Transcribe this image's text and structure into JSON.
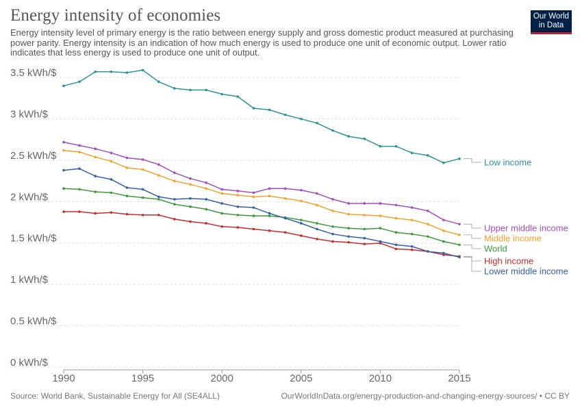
{
  "header": {
    "title": "Energy intensity of economies",
    "subtitle": "Energy intensity level of primary energy is the ratio between energy supply and gross domestic product measured at purchasing power parity. Energy intensity is an indication of how much energy is used to produce one unit of economic output. Lower ratio indicates that less energy is used to produce one unit of output."
  },
  "logo": {
    "line1": "Our World",
    "line2": "in Data",
    "background": "#002147",
    "accent": "#be1e2d"
  },
  "footer": {
    "source": "Source: World Bank, Sustainable Energy for All (SE4ALL)",
    "url": "OurWorldInData.org/energy-production-and-changing-energy-sources/ • CC BY"
  },
  "chart_data": {
    "type": "line",
    "title": "Energy intensity of economies",
    "xlabel": "",
    "ylabel": "",
    "xlim": [
      1990,
      2015
    ],
    "ylim": [
      0,
      3.5
    ],
    "x_ticks": [
      1990,
      1995,
      2000,
      2005,
      2010,
      2015
    ],
    "x_tick_labels": [
      "1990",
      "1995",
      "2000",
      "2005",
      "2010",
      "2015"
    ],
    "y_ticks": [
      0,
      0.5,
      1,
      1.5,
      2,
      2.5,
      3,
      3.5
    ],
    "y_tick_labels": [
      "0 kWh/$",
      "0.5 kWh/$",
      "1 kWh/$",
      "1.5 kWh/$",
      "2 kWh/$",
      "2.5 kWh/$",
      "3 kWh/$",
      "3.5 kWh/$"
    ],
    "grid": true,
    "legend": "labels at right end of lines",
    "x": [
      1990,
      1991,
      1992,
      1993,
      1994,
      1995,
      1996,
      1997,
      1998,
      1999,
      2000,
      2001,
      2002,
      2003,
      2004,
      2005,
      2006,
      2007,
      2008,
      2009,
      2010,
      2011,
      2012,
      2013,
      2014,
      2015
    ],
    "series": [
      {
        "name": "Low income",
        "color": "#2a9396",
        "values": [
          3.34,
          3.39,
          3.51,
          3.51,
          3.5,
          3.53,
          3.39,
          3.31,
          3.29,
          3.29,
          3.24,
          3.21,
          3.07,
          3.05,
          2.99,
          2.94,
          2.89,
          2.8,
          2.73,
          2.7,
          2.61,
          2.61,
          2.53,
          2.5,
          2.41,
          2.46
        ]
      },
      {
        "name": "Upper middle income",
        "color": "#a24cc2",
        "values": [
          2.66,
          2.62,
          2.58,
          2.53,
          2.47,
          2.45,
          2.39,
          2.29,
          2.22,
          2.17,
          2.09,
          2.07,
          2.05,
          2.1,
          2.1,
          2.08,
          2.04,
          1.97,
          1.92,
          1.92,
          1.92,
          1.9,
          1.87,
          1.83,
          1.72,
          1.67
        ]
      },
      {
        "name": "Middle income",
        "color": "#f4a12a",
        "values": [
          2.56,
          2.54,
          2.48,
          2.43,
          2.35,
          2.33,
          2.26,
          2.19,
          2.15,
          2.1,
          2.04,
          2.02,
          2.0,
          2.01,
          1.98,
          1.95,
          1.9,
          1.83,
          1.79,
          1.78,
          1.77,
          1.74,
          1.72,
          1.67,
          1.59,
          1.54
        ]
      },
      {
        "name": "World",
        "color": "#3a9a3a",
        "values": [
          2.1,
          2.09,
          2.06,
          2.05,
          2.01,
          1.99,
          1.97,
          1.91,
          1.88,
          1.85,
          1.8,
          1.78,
          1.77,
          1.77,
          1.75,
          1.72,
          1.68,
          1.64,
          1.62,
          1.61,
          1.62,
          1.57,
          1.55,
          1.52,
          1.46,
          1.42
        ]
      },
      {
        "name": "High income",
        "color": "#c52b2b",
        "values": [
          1.82,
          1.82,
          1.8,
          1.81,
          1.79,
          1.78,
          1.78,
          1.73,
          1.7,
          1.68,
          1.64,
          1.63,
          1.61,
          1.59,
          1.57,
          1.53,
          1.49,
          1.46,
          1.45,
          1.43,
          1.44,
          1.37,
          1.36,
          1.34,
          1.3,
          1.28
        ]
      },
      {
        "name": "Lower middle income",
        "color": "#3360a9",
        "values": [
          2.32,
          2.34,
          2.25,
          2.21,
          2.11,
          2.09,
          2.0,
          1.97,
          1.98,
          1.97,
          1.92,
          1.88,
          1.87,
          1.8,
          1.74,
          1.68,
          1.61,
          1.55,
          1.52,
          1.5,
          1.46,
          1.42,
          1.4,
          1.34,
          1.32,
          1.27
        ]
      }
    ]
  }
}
